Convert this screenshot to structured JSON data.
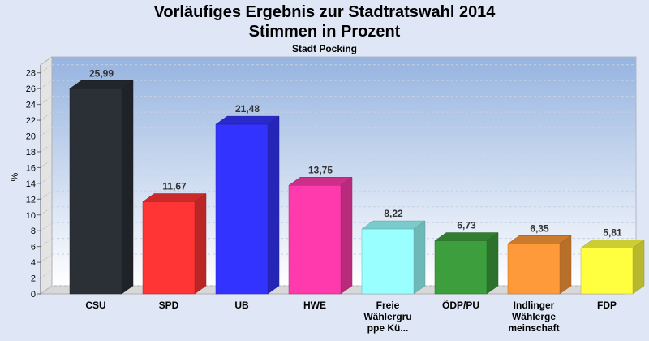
{
  "chart_data": {
    "type": "bar",
    "title": "Vorläufiges Ergebnis zur Stadtratswahl 2014",
    "title_line2": "Stimmen in Prozent",
    "subtitle": "Stadt Pocking",
    "ylabel": "%",
    "ylim": [
      0,
      29
    ],
    "yticks": [
      0,
      2,
      4,
      6,
      8,
      10,
      12,
      14,
      16,
      18,
      20,
      22,
      24,
      26,
      28
    ],
    "grid": true,
    "categories": [
      [
        "CSU"
      ],
      [
        "SPD"
      ],
      [
        "UB"
      ],
      [
        "HWE"
      ],
      [
        "Freie",
        "Wählergru",
        "ppe Kü..."
      ],
      [
        "ÖDP/PU"
      ],
      [
        "Indlinger",
        "Wählerge",
        "meinschaft"
      ],
      [
        "FDP"
      ]
    ],
    "values": [
      25.99,
      11.67,
      21.48,
      13.75,
      8.22,
      6.73,
      6.35,
      5.81
    ],
    "value_labels": [
      "25,99",
      "11,67",
      "21,48",
      "13,75",
      "8,22",
      "6,73",
      "6,35",
      "5,81"
    ],
    "colors": [
      "#2b2f36",
      "#ff3535",
      "#3333ff",
      "#ff3aac",
      "#99ffff",
      "#3d9e3d",
      "#ff9a3a",
      "#ffff40"
    ]
  }
}
